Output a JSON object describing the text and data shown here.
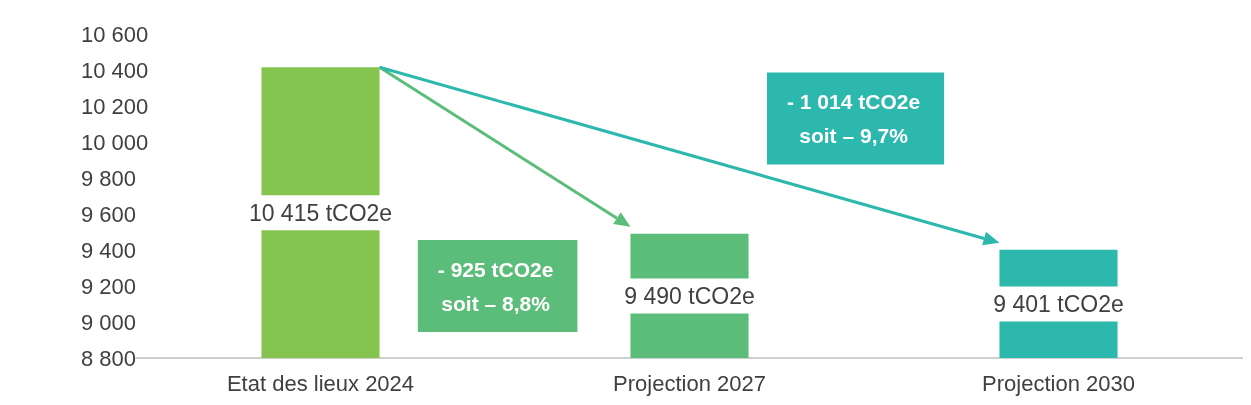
{
  "chart_data": {
    "type": "bar",
    "categories": [
      "Etat des lieux 2024",
      "Projection 2027",
      "Projection 2030"
    ],
    "values": [
      10415,
      9490,
      9401
    ],
    "colors": [
      "#84c44f",
      "#5cbd7a",
      "#2cb8ad"
    ],
    "value_labels": [
      "10 415 tCO2e",
      "9 490 tCO2e",
      "9 401 tCO2e"
    ],
    "ylim": [
      8800,
      10600
    ],
    "yticks": [
      {
        "value": 8800,
        "label": "8 800"
      },
      {
        "value": 9000,
        "label": "9 000"
      },
      {
        "value": 9200,
        "label": "9 200"
      },
      {
        "value": 9400,
        "label": "9 400"
      },
      {
        "value": 9600,
        "label": "9 600"
      },
      {
        "value": 9800,
        "label": "9 800"
      },
      {
        "value": 10000,
        "label": "10 000"
      },
      {
        "value": 10200,
        "label": "10 200"
      },
      {
        "value": 10400,
        "label": "10 400"
      },
      {
        "value": 10600,
        "label": "10 600"
      }
    ],
    "annotations": [
      "- 925 tCO2e\nsoit – 8,8%",
      "- 1 014 tCO2e\nsoit – 9,7%"
    ]
  }
}
